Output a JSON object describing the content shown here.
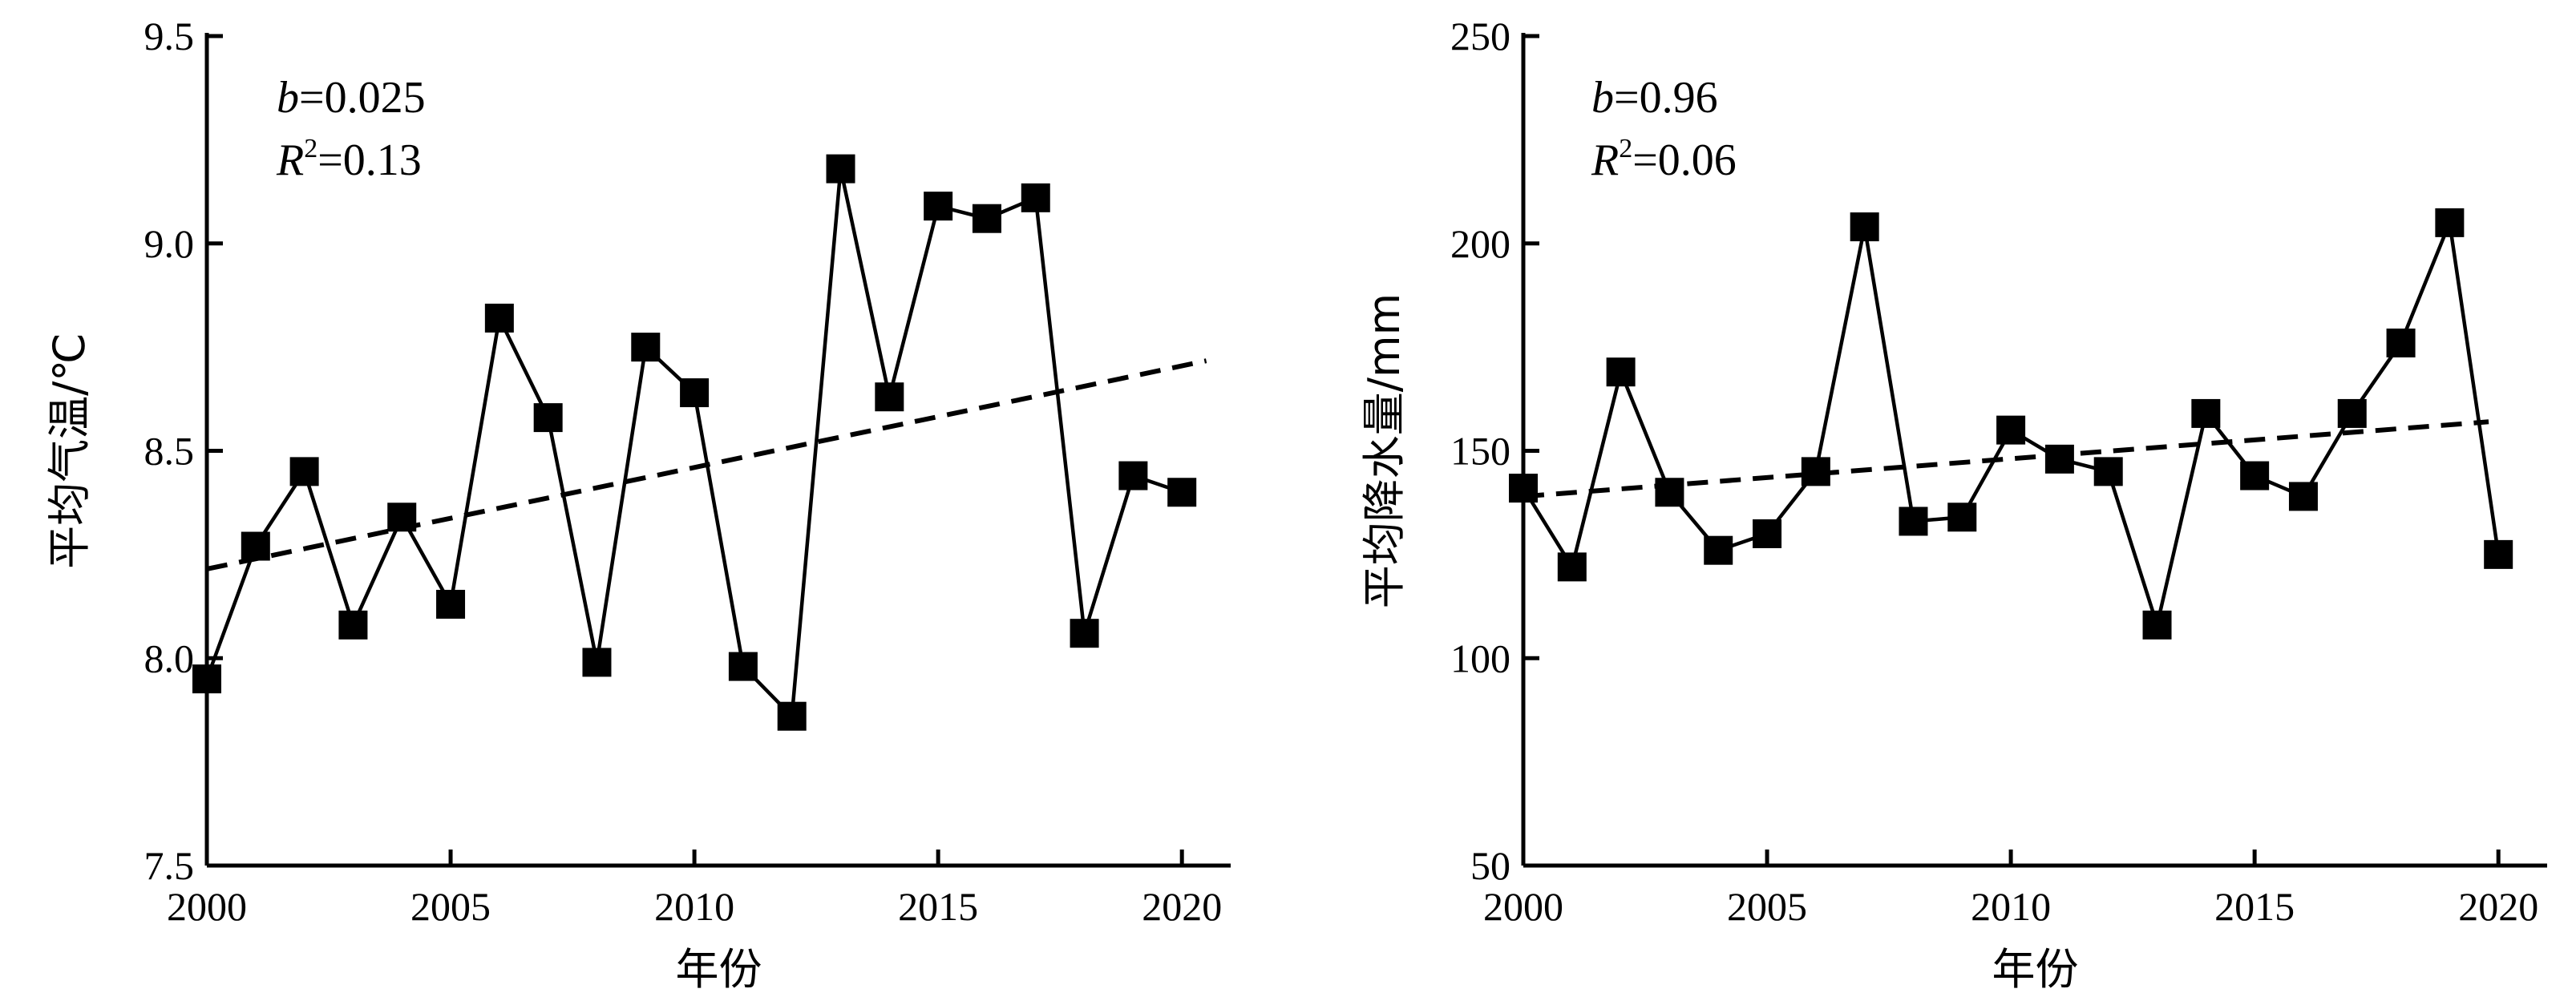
{
  "chart_data": [
    {
      "type": "line",
      "xlabel": "年份",
      "ylabel": "平均气温/℃",
      "xlim": [
        2000,
        2021
      ],
      "ylim": [
        7.5,
        9.5
      ],
      "xticks": [
        2000,
        2005,
        2010,
        2015,
        2020
      ],
      "yticks": [
        7.5,
        8.0,
        8.5,
        9.0,
        9.5
      ],
      "ytick_labels": [
        "7.5",
        "8.0",
        "8.5",
        "9.0",
        "9.5"
      ],
      "annotation": {
        "b_label": "b",
        "b_value": "=0.025",
        "r_label": "R",
        "r_sup": "2",
        "r_value": "=0.13"
      },
      "series": [
        {
          "x": [
            2000,
            2001,
            2002,
            2003,
            2004,
            2005,
            2006,
            2007,
            2008,
            2009,
            2010,
            2011,
            2012,
            2013,
            2014,
            2015,
            2016,
            2017,
            2018,
            2019,
            2020
          ],
          "values": [
            7.95,
            8.27,
            8.45,
            8.08,
            8.34,
            8.13,
            8.82,
            8.58,
            7.99,
            8.75,
            8.64,
            7.98,
            7.86,
            9.18,
            8.63,
            9.09,
            9.06,
            9.11,
            8.06,
            8.44,
            8.4
          ]
        }
      ],
      "trend": {
        "x": [
          2000,
          2020.5
        ],
        "y": [
          8.215,
          8.717
        ]
      }
    },
    {
      "type": "line",
      "xlabel": "年份",
      "ylabel": "平均降水量/mm",
      "xlim": [
        2000,
        2021
      ],
      "ylim": [
        50,
        250
      ],
      "xticks": [
        2000,
        2005,
        2010,
        2015,
        2020
      ],
      "yticks": [
        50,
        100,
        150,
        200,
        250
      ],
      "ytick_labels": [
        "50",
        "100",
        "150",
        "200",
        "250"
      ],
      "annotation": {
        "b_label": "b",
        "b_value": "=0.96",
        "r_label": "R",
        "r_sup": "2",
        "r_value": "=0.06"
      },
      "series": [
        {
          "x": [
            2000,
            2001,
            2002,
            2003,
            2004,
            2005,
            2006,
            2007,
            2008,
            2009,
            2010,
            2011,
            2012,
            2013,
            2014,
            2015,
            2016,
            2017,
            2018,
            2019,
            2020
          ],
          "values": [
            141,
            122,
            169,
            140,
            126,
            130,
            145,
            204,
            133,
            134,
            155,
            148,
            145,
            108,
            159,
            144,
            139,
            159,
            176,
            205,
            125
          ]
        }
      ],
      "trend": {
        "x": [
          2000,
          2019.8
        ],
        "y": [
          139,
          157
        ]
      }
    }
  ]
}
